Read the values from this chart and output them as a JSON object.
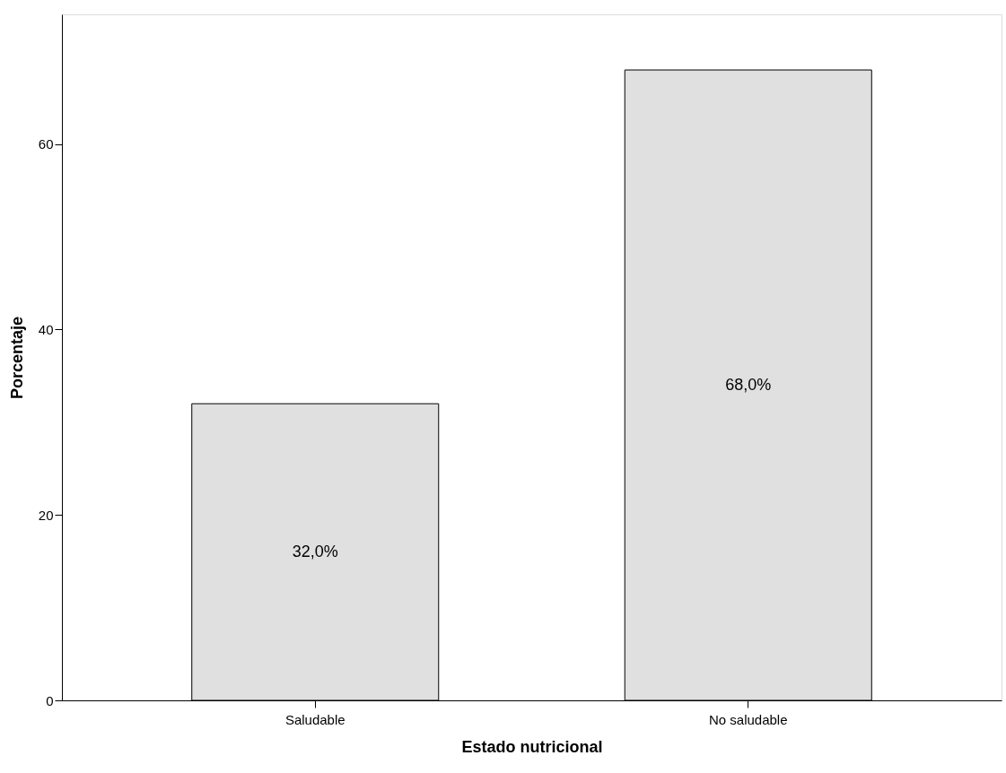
{
  "chart_data": {
    "type": "bar",
    "xlabel": "Estado nutricional",
    "ylabel": "Porcentaje",
    "categories": [
      "Saludable",
      "No saludable"
    ],
    "values": [
      32,
      68
    ],
    "color": "#e0e0e0",
    "value_labels": [
      "32,0%",
      "68,0%"
    ],
    "ylim": [
      0,
      74
    ],
    "yticks": [
      0,
      20,
      40,
      60
    ],
    "grid": false
  }
}
